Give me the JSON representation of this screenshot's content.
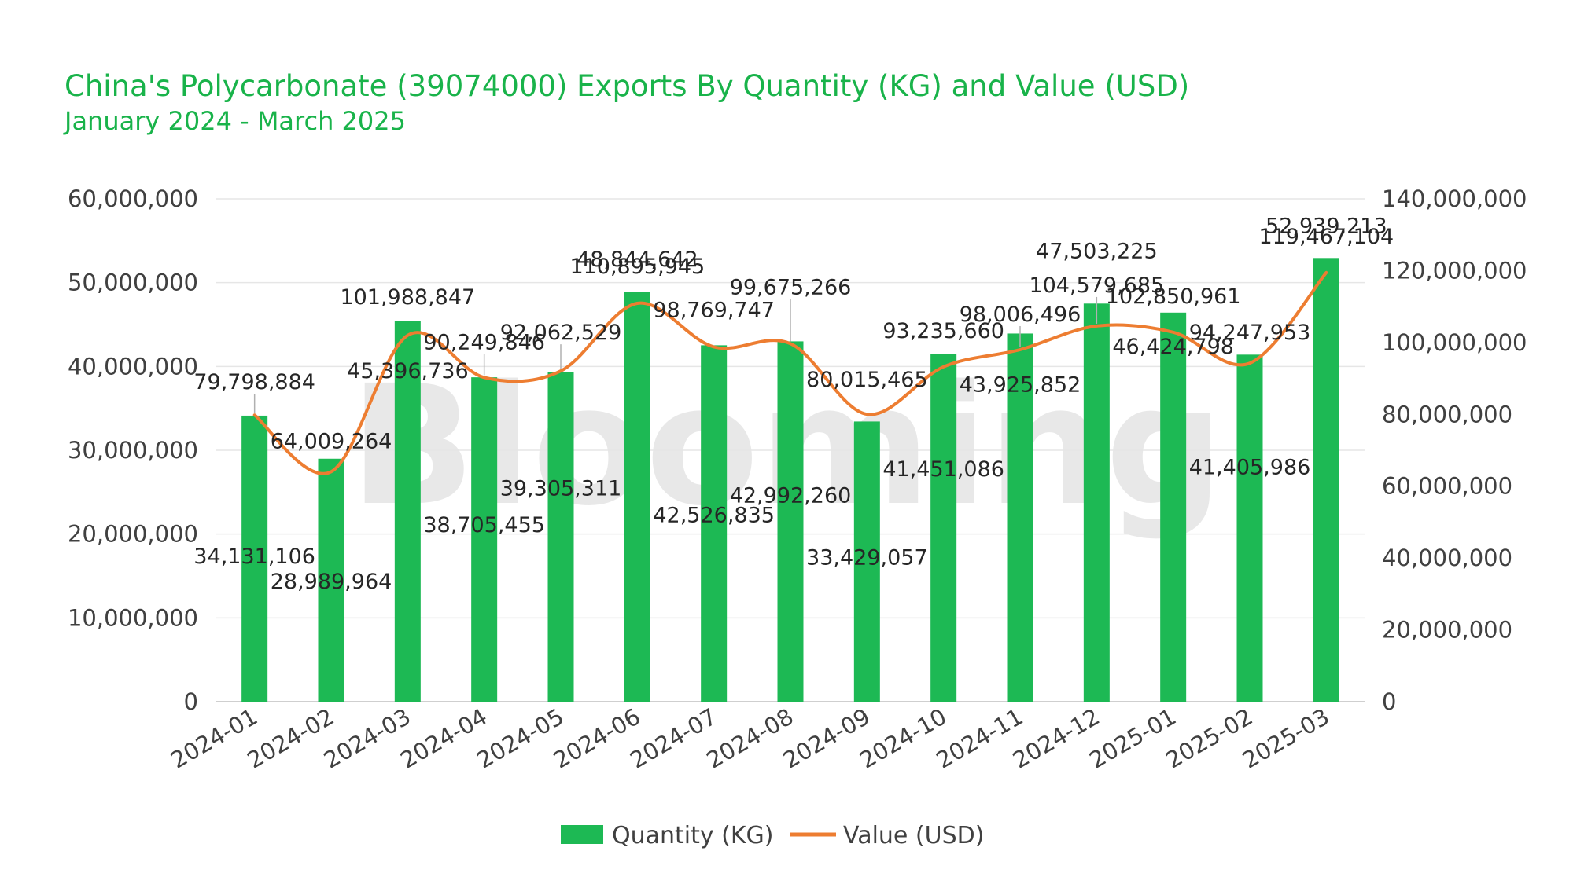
{
  "chart_data": {
    "type": "bar",
    "title": "China's Polycarbonate (39074000) Exports By Quantity (KG) and Value (USD)",
    "subtitle": "January 2024 - March 2025",
    "categories": [
      "2024-01",
      "2024-02",
      "2024-03",
      "2024-04",
      "2024-05",
      "2024-06",
      "2024-07",
      "2024-08",
      "2024-09",
      "2024-10",
      "2024-11",
      "2024-12",
      "2025-01",
      "2025-02",
      "2025-03"
    ],
    "series": [
      {
        "name": "Quantity (KG)",
        "type": "bar",
        "axis": "left",
        "color": "#1db954",
        "values": [
          34131106,
          28989964,
          45396736,
          38705455,
          39305311,
          48844642,
          42526835,
          42992260,
          33429057,
          41451086,
          43925852,
          47503225,
          46424798,
          41405986,
          52939213
        ],
        "labels": [
          "34,131,106",
          "28,989,964",
          "45,396,736",
          "38,705,455",
          "39,305,311",
          "48,844,642",
          "42,526,835",
          "42,992,260",
          "33,429,057",
          "41,451,086",
          "43,925,852",
          "47,503,225",
          "46,424,798",
          "41,405,986",
          "52,939,213"
        ]
      },
      {
        "name": "Value (USD)",
        "type": "line",
        "axis": "right",
        "color": "#ed7d31",
        "values": [
          79798884,
          64009264,
          101988847,
          90249846,
          92062529,
          110895945,
          98769747,
          99675266,
          80015465,
          93235660,
          98006496,
          104579685,
          102850961,
          94247953,
          119467104
        ],
        "labels": [
          "79,798,884",
          "64,009,264",
          "101,988,847",
          "90,249,846",
          "92,062,529",
          "110,895,945",
          "98,769,747",
          "99,675,266",
          "80,015,465",
          "93,235,660",
          "98,006,496",
          "104,579,685",
          "102,850,961",
          "94,247,953",
          "119,467,104"
        ]
      }
    ],
    "y_left": {
      "range": [
        0,
        60000000
      ],
      "ticks": [
        "0",
        "10,000,000",
        "20,000,000",
        "30,000,000",
        "40,000,000",
        "50,000,000",
        "60,000,000"
      ]
    },
    "y_right": {
      "range": [
        0,
        140000000
      ],
      "ticks": [
        "0",
        "20,000,000",
        "40,000,000",
        "60,000,000",
        "80,000,000",
        "100,000,000",
        "120,000,000",
        "140,000,000"
      ]
    },
    "grid": true,
    "legend": "bottom-center",
    "watermark": "Blooming"
  }
}
